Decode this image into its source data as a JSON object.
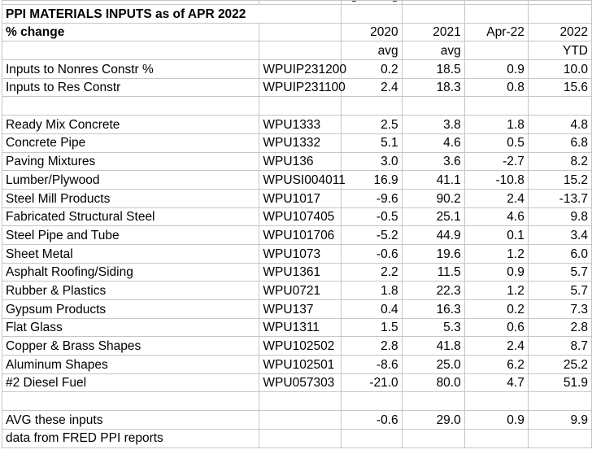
{
  "title": "PPI MATERIALS INPUTS as of APR 2022",
  "footer": "data from FRED PPI reports",
  "columns": {
    "label_header": "% change",
    "years": [
      "2020",
      "2021",
      "Apr-22",
      "2022"
    ],
    "sub": [
      "avg",
      "avg",
      "",
      "YTD"
    ]
  },
  "rows": [
    {
      "label": "Inputs to Nonres Constr %",
      "code": "WPUIP231200",
      "values": [
        "0.2",
        "18.5",
        "0.9",
        "10.0"
      ]
    },
    {
      "label": "Inputs to Res Constr",
      "code": "WPUIP231100",
      "values": [
        "2.4",
        "18.3",
        "0.8",
        "15.6"
      ]
    },
    {
      "label": "",
      "code": "",
      "values": [
        "",
        "",
        "",
        ""
      ]
    },
    {
      "label": "Ready Mix Concrete",
      "code": "WPU1333",
      "values": [
        "2.5",
        "3.8",
        "1.8",
        "4.8"
      ]
    },
    {
      "label": "Concrete Pipe",
      "code": "WPU1332",
      "values": [
        "5.1",
        "4.6",
        "0.5",
        "6.8"
      ]
    },
    {
      "label": "Paving Mixtures",
      "code": "WPU136",
      "values": [
        "3.0",
        "3.6",
        "-2.7",
        "8.2"
      ]
    },
    {
      "label": "Lumber/Plywood",
      "code": "WPUSI004011",
      "values": [
        "16.9",
        "41.1",
        "-10.8",
        "15.2"
      ]
    },
    {
      "label": "Steel Mill Products",
      "code": "WPU1017",
      "values": [
        "-9.6",
        "90.2",
        "2.4",
        "-13.7"
      ]
    },
    {
      "label": "Fabricated Structural Steel",
      "code": "WPU107405",
      "values": [
        "-0.5",
        "25.1",
        "4.6",
        "9.8"
      ]
    },
    {
      "label": "Steel Pipe and Tube",
      "code": "WPU101706",
      "values": [
        "-5.2",
        "44.9",
        "0.1",
        "3.4"
      ]
    },
    {
      "label": "Sheet Metal",
      "code": "WPU1073",
      "values": [
        "-0.6",
        "19.6",
        "1.2",
        "6.0"
      ]
    },
    {
      "label": "Asphalt Roofing/Siding",
      "code": "WPU1361",
      "values": [
        "2.2",
        "11.5",
        "0.9",
        "5.7"
      ]
    },
    {
      "label": "Rubber & Plastics",
      "code": "WPU0721",
      "values": [
        "1.8",
        "22.3",
        "1.2",
        "5.7"
      ]
    },
    {
      "label": "Gypsum Products",
      "code": "WPU137",
      "values": [
        "0.4",
        "16.3",
        "0.2",
        "7.3"
      ]
    },
    {
      "label": "Flat Glass",
      "code": "WPU1311",
      "values": [
        "1.5",
        "5.3",
        "0.6",
        "2.8"
      ]
    },
    {
      "label": "Copper & Brass Shapes",
      "code": "WPU102502",
      "values": [
        "2.8",
        "41.8",
        "2.4",
        "8.7"
      ]
    },
    {
      "label": "Aluminum Shapes",
      "code": "WPU102501",
      "values": [
        "-8.6",
        "25.0",
        "6.2",
        "25.2"
      ]
    },
    {
      "label": "#2 Diesel Fuel",
      "code": "WPU057303",
      "values": [
        "-21.0",
        "80.0",
        "4.7",
        "51.9"
      ]
    },
    {
      "label": "",
      "code": "",
      "values": [
        "",
        "",
        "",
        ""
      ]
    },
    {
      "label": "AVG these inputs",
      "code": "",
      "values": [
        "-0.6",
        "29.0",
        "0.9",
        "9.9"
      ]
    }
  ],
  "colors": {
    "background": "#ffffff",
    "text": "#000000",
    "gridline": "#c6c6c6",
    "border": "#000000"
  }
}
